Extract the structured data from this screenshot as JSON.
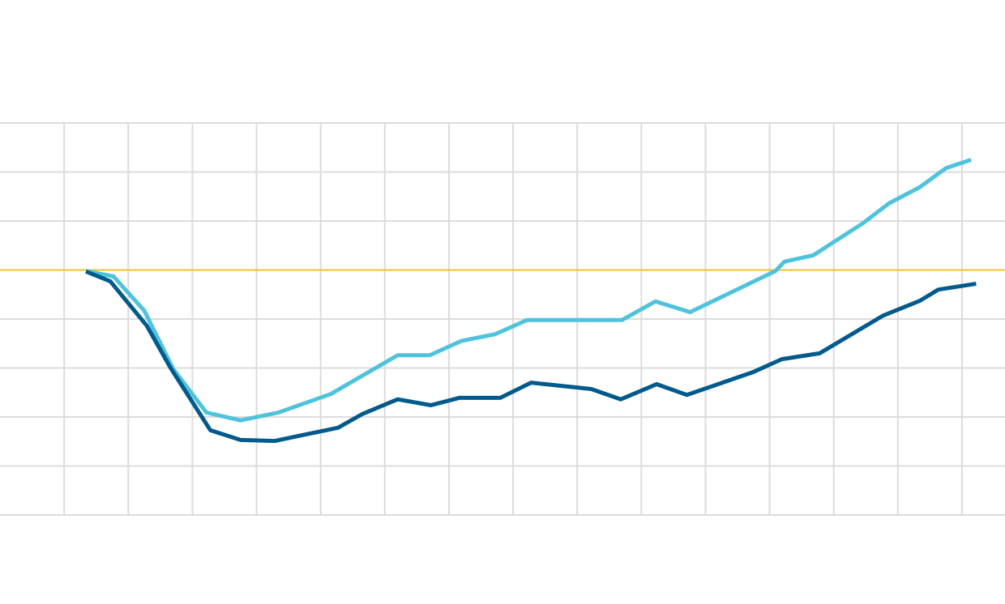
{
  "chart_data": {
    "type": "line",
    "xlim": [
      0,
      15.67
    ],
    "ylim": [
      -5,
      3
    ],
    "xticks": [
      1,
      2,
      3,
      4,
      5,
      6,
      7,
      8,
      9,
      10,
      11,
      12,
      13,
      14,
      15
    ],
    "yticks": [
      -5,
      -4,
      -3,
      -2,
      -1,
      0,
      1,
      2,
      3
    ],
    "grid": true,
    "grid_color": "#dcdcdc",
    "reference_line": {
      "value": 0,
      "color": "#f2c12e"
    },
    "series": [
      {
        "color": "#4fc3dc",
        "x": [
          1.34,
          1.77,
          2.25,
          2.7,
          3.22,
          3.75,
          4.34,
          5.16,
          6.2,
          6.7,
          7.19,
          7.72,
          8.22,
          9.7,
          10.22,
          10.76,
          12.09,
          12.23,
          12.68,
          13.46,
          13.86,
          14.34,
          14.75,
          15.14
        ],
        "values": [
          -0.02,
          -0.13,
          -0.83,
          -2.02,
          -2.91,
          -3.07,
          -2.91,
          -2.53,
          -1.74,
          -1.74,
          -1.45,
          -1.31,
          -1.02,
          -1.02,
          -0.64,
          -0.86,
          -0.02,
          0.17,
          0.3,
          0.96,
          1.36,
          1.69,
          2.08,
          2.25
        ]
      },
      {
        "color": "#005a8c",
        "x": [
          1.34,
          1.72,
          2.29,
          2.66,
          3.28,
          3.75,
          4.28,
          5.27,
          5.65,
          6.2,
          6.72,
          7.16,
          7.8,
          8.28,
          9.22,
          9.68,
          10.24,
          10.71,
          11.75,
          12.19,
          12.78,
          13.77,
          14.34,
          14.63,
          15.22
        ],
        "values": [
          -0.03,
          -0.23,
          -1.14,
          -2.0,
          -3.27,
          -3.47,
          -3.49,
          -3.22,
          -2.94,
          -2.64,
          -2.76,
          -2.61,
          -2.61,
          -2.3,
          -2.43,
          -2.64,
          -2.33,
          -2.55,
          -2.08,
          -1.82,
          -1.7,
          -0.93,
          -0.63,
          -0.4,
          -0.28
        ]
      }
    ]
  }
}
